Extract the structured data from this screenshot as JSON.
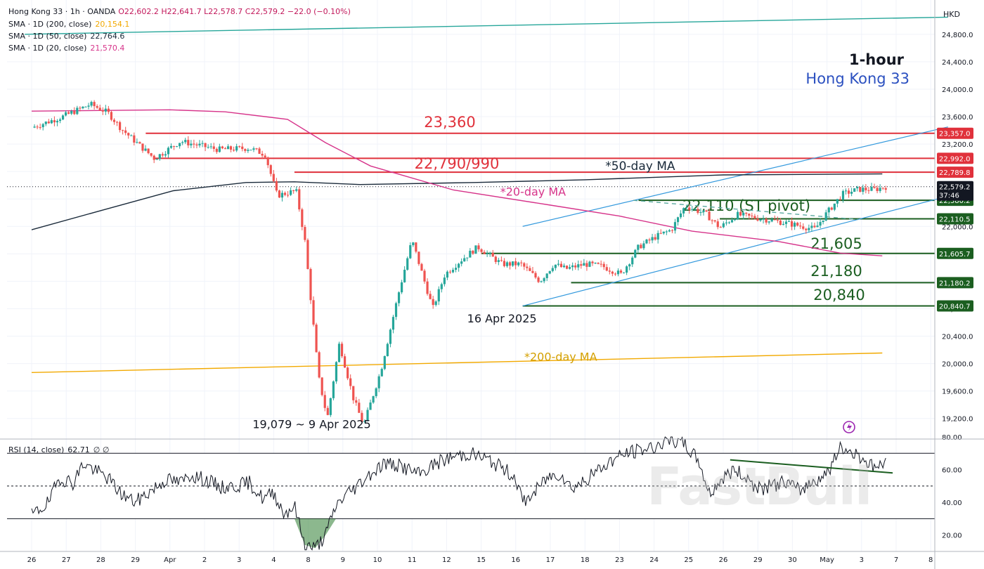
{
  "header": {
    "symbol_line": "Hong Kong 33 · 1h · OANDA",
    "ohlc": "O22,602.2 H22,641.7 L22,578.7 C22,579.2 −22.0 (−0.10%)",
    "sma_200": {
      "label": "SMA · 1D (200, close)",
      "value": "20,154.1",
      "color": "#f2a900"
    },
    "sma_50": {
      "label": "SMA · 1D (50, close)",
      "value": "22,764.6",
      "color": "#1a2a3a"
    },
    "sma_20": {
      "label": "SMA · 1D (20, close)",
      "value": "21,570.4",
      "color": "#d6338a"
    },
    "currency": "HKD"
  },
  "watermark": "FastBull",
  "chart_data": [
    {
      "type": "candlestick",
      "title": "1-hour",
      "subtitle": "Hong Kong 33",
      "ylim": [
        18900,
        25300
      ],
      "y_ticks": [
        19200,
        19600,
        20000,
        20400,
        20800,
        21200,
        21600,
        22000,
        22400,
        22800,
        23200,
        23600,
        24000,
        24400,
        24800
      ],
      "y_tick_labels": [
        "19,200.0",
        "19,600.0",
        "20,000.0",
        "20,400.0",
        "20,800.0",
        "21,200.0",
        "21,600.0",
        "22,000.0",
        "22,400.0",
        "22,800.0",
        "23,200.0",
        "23,600.0",
        "24,000.0",
        "24,400.0",
        "24,800.0"
      ],
      "x_ticks": [
        "26",
        "27",
        "28",
        "29",
        "Apr",
        "2",
        "3",
        "4",
        "8",
        "9",
        "10",
        "11",
        "12",
        "15",
        "16",
        "17",
        "18",
        "23",
        "24",
        "25",
        "26",
        "29",
        "30",
        "May",
        "3",
        "7",
        "8"
      ],
      "price_path": [
        [
          0,
          23440
        ],
        [
          0.9,
          23600
        ],
        [
          1.7,
          23780
        ],
        [
          2.2,
          23660
        ],
        [
          2.6,
          23420
        ],
        [
          3.1,
          23190
        ],
        [
          3.55,
          22990
        ],
        [
          4.3,
          23240
        ],
        [
          5.4,
          23120
        ],
        [
          6.3,
          23140
        ],
        [
          6.75,
          23050
        ],
        [
          7.1,
          22450
        ],
        [
          7.65,
          22520
        ],
        [
          7.9,
          21800
        ],
        [
          8.3,
          19800
        ],
        [
          8.55,
          19200
        ],
        [
          8.9,
          20300
        ],
        [
          9.3,
          19500
        ],
        [
          9.6,
          19100
        ],
        [
          10.1,
          19900
        ],
        [
          10.6,
          21000
        ],
        [
          11.0,
          21800
        ],
        [
          11.6,
          20800
        ],
        [
          11.95,
          21300
        ],
        [
          12.4,
          21500
        ],
        [
          12.9,
          21700
        ],
        [
          13.6,
          21450
        ],
        [
          14.15,
          21450
        ],
        [
          14.7,
          21200
        ],
        [
          15.1,
          21450
        ],
        [
          15.45,
          21380
        ],
        [
          16.0,
          21450
        ],
        [
          16.5,
          21420
        ],
        [
          17.05,
          21300
        ],
        [
          17.55,
          21700
        ],
        [
          18.05,
          21850
        ],
        [
          18.5,
          21950
        ],
        [
          18.9,
          22300
        ],
        [
          19.5,
          22180
        ],
        [
          19.9,
          21980
        ],
        [
          20.4,
          22170
        ],
        [
          21.0,
          22120
        ],
        [
          21.5,
          22080
        ],
        [
          22.1,
          22020
        ],
        [
          22.65,
          21960
        ],
        [
          23.0,
          22200
        ],
        [
          23.45,
          22470
        ],
        [
          23.9,
          22540
        ],
        [
          24.4,
          22540
        ],
        [
          24.7,
          22579.2
        ]
      ],
      "moving_averages": [
        {
          "name": "*200-day MA",
          "color": "#f2a900",
          "points": [
            [
              0,
              19870
            ],
            [
              24.6,
              20154.1
            ]
          ]
        },
        {
          "name": "*50-day MA",
          "color": "#1a2a3a",
          "points": [
            [
              0,
              21950
            ],
            [
              2.0,
              22230
            ],
            [
              4.1,
              22520
            ],
            [
              6.2,
              22640
            ],
            [
              7.6,
              22650
            ],
            [
              9.5,
              22610
            ],
            [
              12.8,
              22640
            ],
            [
              16.0,
              22680
            ],
            [
              20.0,
              22750
            ],
            [
              24.6,
              22764.6
            ]
          ]
        },
        {
          "name": "*20-day MA",
          "color": "#d6338a",
          "points": [
            [
              0,
              23680
            ],
            [
              4.0,
              23700
            ],
            [
              5.6,
              23670
            ],
            [
              7.4,
              23560
            ],
            [
              8.5,
              23220
            ],
            [
              9.8,
              22880
            ],
            [
              12.2,
              22530
            ],
            [
              15.0,
              22310
            ],
            [
              17.0,
              22150
            ],
            [
              19.1,
              21930
            ],
            [
              21.6,
              21780
            ],
            [
              23.4,
              21610
            ],
            [
              24.6,
              21570.4
            ]
          ]
        },
        {
          "name": "",
          "color": "#26a69a",
          "points": [
            [
              -0.2,
              24800
            ],
            [
              26.5,
              25050
            ]
          ]
        }
      ],
      "levels": [
        {
          "label": "23,360",
          "value": 23357.0,
          "axis_label": "23,357.0",
          "color": "#e0313b",
          "x_start": 3.3
        },
        {
          "label": "22,790/990",
          "value": 22992.0,
          "axis_label": "22,992.0",
          "color": "#e0313b",
          "x_start": 3.55
        },
        {
          "label": "",
          "value": 22789.8,
          "axis_label": "22,789.8",
          "color": "#e0313b",
          "x_start": 7.6
        },
        {
          "label": "",
          "value": 22380.2,
          "axis_label": "22,380.2",
          "color": "#1b5e20",
          "x_start": 17.55
        },
        {
          "label": "22,110 (ST pivot)",
          "value": 22110.5,
          "axis_label": "22,110.5",
          "color": "#1b5e20",
          "x_start": 19.9
        },
        {
          "label": "21,605",
          "value": 21605.7,
          "axis_label": "21,605.7",
          "color": "#1b5e20",
          "x_start": 13.0
        },
        {
          "label": "21,180",
          "value": 21180.2,
          "axis_label": "21,180.2",
          "color": "#1b5e20",
          "x_start": 15.6
        },
        {
          "label": "20,840",
          "value": 20840.7,
          "axis_label": "20,840.7",
          "color": "#1b5e20",
          "x_start": 14.2
        }
      ],
      "current_price": {
        "value": 22579.2,
        "axis_label": "22,579.2",
        "countdown": "37:46"
      },
      "channel": {
        "color": "#3399dd",
        "lower": [
          [
            14.2,
            20840
          ],
          [
            26.5,
            22440
          ]
        ],
        "upper": [
          [
            14.2,
            22000
          ],
          [
            26.5,
            23450
          ]
        ]
      },
      "annotations": [
        {
          "text": "*50-day MA",
          "color": "#1a2a3a",
          "x": 17.6,
          "y": 22820
        },
        {
          "text": "*20-day MA",
          "color": "#d6338a",
          "x": 14.5,
          "y": 22450
        },
        {
          "text": "*200-day MA",
          "color": "#d4a000",
          "x": 15.3,
          "y": 20040
        },
        {
          "text": "16 Apr 2025",
          "color": "#131722",
          "x": 13.6,
          "y": 20600
        },
        {
          "text": "19,079 ~ 9 Apr 2025",
          "color": "#131722",
          "x": 8.1,
          "y": 19060
        }
      ]
    },
    {
      "type": "line",
      "title": "RSI (14, close)",
      "value_label": "62.71",
      "extra_labels": "∅ ∅",
      "ylim": [
        10,
        80
      ],
      "y_ticks": [
        20,
        40,
        60,
        80
      ],
      "y_tick_labels": [
        "20.00",
        "40.00",
        "60.00",
        "80.00"
      ],
      "bands": [
        30,
        50,
        70
      ],
      "points": [
        [
          0,
          32
        ],
        [
          0.5,
          40
        ],
        [
          0.8,
          55
        ],
        [
          1.2,
          52
        ],
        [
          1.5,
          64
        ],
        [
          1.8,
          60
        ],
        [
          2.2,
          55
        ],
        [
          2.6,
          45
        ],
        [
          3.0,
          40
        ],
        [
          3.5,
          48
        ],
        [
          3.9,
          54
        ],
        [
          4.3,
          52
        ],
        [
          4.6,
          57
        ],
        [
          5.1,
          53
        ],
        [
          5.5,
          49
        ],
        [
          5.9,
          50
        ],
        [
          6.3,
          52
        ],
        [
          6.7,
          42
        ],
        [
          7.0,
          46
        ],
        [
          7.3,
          33
        ],
        [
          7.6,
          38
        ],
        [
          7.9,
          14
        ],
        [
          8.2,
          12
        ],
        [
          8.5,
          20
        ],
        [
          8.8,
          38
        ],
        [
          9.1,
          45
        ],
        [
          9.4,
          50
        ],
        [
          9.7,
          56
        ],
        [
          10.2,
          64
        ],
        [
          10.7,
          62
        ],
        [
          11.2,
          57
        ],
        [
          11.7,
          64
        ],
        [
          12.2,
          68
        ],
        [
          12.7,
          70
        ],
        [
          13.2,
          66
        ],
        [
          13.7,
          60
        ],
        [
          14.0,
          55
        ],
        [
          14.2,
          40
        ],
        [
          14.5,
          45
        ],
        [
          14.9,
          55
        ],
        [
          15.3,
          58
        ],
        [
          15.6,
          49
        ],
        [
          16.0,
          53
        ],
        [
          16.4,
          60
        ],
        [
          16.8,
          66
        ],
        [
          17.2,
          70
        ],
        [
          17.6,
          72
        ],
        [
          18.0,
          74
        ],
        [
          18.4,
          78
        ],
        [
          18.9,
          75
        ],
        [
          19.3,
          65
        ],
        [
          19.6,
          45
        ],
        [
          19.9,
          53
        ],
        [
          20.3,
          60
        ],
        [
          20.7,
          55
        ],
        [
          21.0,
          48
        ],
        [
          21.4,
          50
        ],
        [
          21.8,
          53
        ],
        [
          22.2,
          47
        ],
        [
          22.6,
          53
        ],
        [
          23.0,
          58
        ],
        [
          23.4,
          73
        ],
        [
          23.7,
          71
        ],
        [
          24.0,
          68
        ],
        [
          24.3,
          62
        ],
        [
          24.7,
          62.7
        ]
      ],
      "divergence_line": [
        [
          20.2,
          66
        ],
        [
          24.9,
          58
        ]
      ]
    }
  ]
}
